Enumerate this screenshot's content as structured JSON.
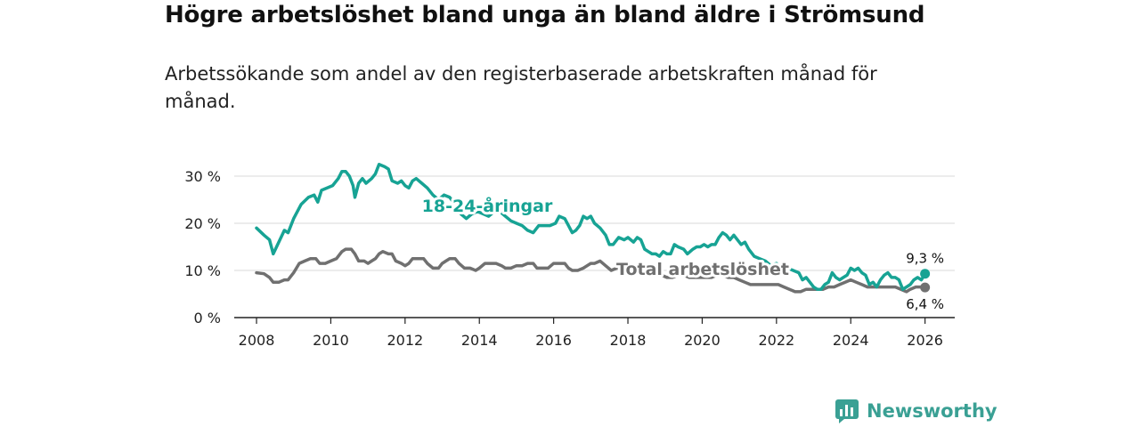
{
  "header": {
    "title": "Högre arbetslöshet bland unga än bland äldre i Strömsund",
    "subtitle": "Arbetssökande som andel av den registerbaserade arbetskraften månad för månad."
  },
  "brand": {
    "name": "Newsworthy",
    "icon": "newsworthy-logo-icon"
  },
  "colors": {
    "youth": "#17a394",
    "total": "#707070",
    "grid": "#d9d9d9",
    "axis": "#222222"
  },
  "chart_data": {
    "type": "line",
    "title": "Högre arbetslöshet bland unga än bland äldre i Strömsund",
    "subtitle": "Arbetssökande som andel av den registerbaserade arbetskraften månad för månad.",
    "xlabel": "",
    "ylabel": "",
    "xlim": [
      2007.4,
      2026.8
    ],
    "ylim": [
      0,
      30
    ],
    "x_ticks": [
      2008,
      2010,
      2012,
      2014,
      2016,
      2018,
      2020,
      2022,
      2024,
      2026
    ],
    "y_ticks": [
      0,
      10,
      20,
      30
    ],
    "y_tick_labels": [
      "0 %",
      "10 %",
      "20 %",
      "30 %"
    ],
    "grid": true,
    "series": [
      {
        "name": "18-24-åringar",
        "label": "18-24-åringar",
        "end_label": "9,3 %",
        "points": [
          [
            2008.0,
            19.0
          ],
          [
            2008.2,
            17.5
          ],
          [
            2008.35,
            16.5
          ],
          [
            2008.45,
            13.5
          ],
          [
            2008.6,
            16.0
          ],
          [
            2008.75,
            18.5
          ],
          [
            2008.85,
            18.0
          ],
          [
            2009.0,
            21.0
          ],
          [
            2009.2,
            24.0
          ],
          [
            2009.4,
            25.5
          ],
          [
            2009.55,
            26.0
          ],
          [
            2009.65,
            24.5
          ],
          [
            2009.75,
            27.0
          ],
          [
            2009.9,
            27.5
          ],
          [
            2010.05,
            28.0
          ],
          [
            2010.2,
            29.5
          ],
          [
            2010.3,
            31.0
          ],
          [
            2010.4,
            31.0
          ],
          [
            2010.5,
            30.0
          ],
          [
            2010.6,
            28.0
          ],
          [
            2010.65,
            25.5
          ],
          [
            2010.75,
            28.5
          ],
          [
            2010.85,
            29.5
          ],
          [
            2010.95,
            28.5
          ],
          [
            2011.1,
            29.5
          ],
          [
            2011.2,
            30.5
          ],
          [
            2011.3,
            32.5
          ],
          [
            2011.45,
            32.0
          ],
          [
            2011.55,
            31.5
          ],
          [
            2011.65,
            29.0
          ],
          [
            2011.8,
            28.5
          ],
          [
            2011.9,
            29.0
          ],
          [
            2012.0,
            28.0
          ],
          [
            2012.1,
            27.5
          ],
          [
            2012.2,
            29.0
          ],
          [
            2012.3,
            29.5
          ],
          [
            2012.45,
            28.5
          ],
          [
            2012.6,
            27.5
          ],
          [
            2012.75,
            26.0
          ],
          [
            2012.9,
            25.0
          ],
          [
            2013.05,
            26.0
          ],
          [
            2013.2,
            25.5
          ],
          [
            2013.35,
            24.0
          ],
          [
            2013.5,
            22.0
          ],
          [
            2013.65,
            21.0
          ],
          [
            2013.8,
            22.0
          ],
          [
            2013.95,
            22.5
          ],
          [
            2014.1,
            22.0
          ],
          [
            2014.25,
            21.5
          ],
          [
            2014.4,
            22.5
          ],
          [
            2014.55,
            22.5
          ],
          [
            2014.7,
            21.5
          ],
          [
            2014.85,
            20.5
          ],
          [
            2015.0,
            20.0
          ],
          [
            2015.15,
            19.5
          ],
          [
            2015.3,
            18.5
          ],
          [
            2015.45,
            18.0
          ],
          [
            2015.6,
            19.5
          ],
          [
            2015.75,
            19.5
          ],
          [
            2015.9,
            19.5
          ],
          [
            2016.05,
            20.0
          ],
          [
            2016.15,
            21.5
          ],
          [
            2016.3,
            21.0
          ],
          [
            2016.4,
            19.5
          ],
          [
            2016.5,
            18.0
          ],
          [
            2016.6,
            18.5
          ],
          [
            2016.7,
            19.5
          ],
          [
            2016.8,
            21.5
          ],
          [
            2016.9,
            21.0
          ],
          [
            2017.0,
            21.5
          ],
          [
            2017.1,
            20.0
          ],
          [
            2017.25,
            19.0
          ],
          [
            2017.4,
            17.5
          ],
          [
            2017.5,
            15.5
          ],
          [
            2017.6,
            15.5
          ],
          [
            2017.75,
            17.0
          ],
          [
            2017.9,
            16.5
          ],
          [
            2018.0,
            17.0
          ],
          [
            2018.15,
            16.0
          ],
          [
            2018.25,
            17.0
          ],
          [
            2018.35,
            16.5
          ],
          [
            2018.45,
            14.5
          ],
          [
            2018.55,
            14.0
          ],
          [
            2018.65,
            13.5
          ],
          [
            2018.75,
            13.5
          ],
          [
            2018.85,
            13.0
          ],
          [
            2018.95,
            14.0
          ],
          [
            2019.05,
            13.5
          ],
          [
            2019.15,
            13.5
          ],
          [
            2019.25,
            15.5
          ],
          [
            2019.35,
            15.0
          ],
          [
            2019.5,
            14.5
          ],
          [
            2019.6,
            13.5
          ],
          [
            2019.75,
            14.5
          ],
          [
            2019.85,
            15.0
          ],
          [
            2019.95,
            15.0
          ],
          [
            2020.05,
            15.5
          ],
          [
            2020.15,
            15.0
          ],
          [
            2020.25,
            15.5
          ],
          [
            2020.35,
            15.5
          ],
          [
            2020.45,
            17.0
          ],
          [
            2020.55,
            18.0
          ],
          [
            2020.65,
            17.5
          ],
          [
            2020.75,
            16.5
          ],
          [
            2020.85,
            17.5
          ],
          [
            2020.95,
            16.5
          ],
          [
            2021.05,
            15.5
          ],
          [
            2021.15,
            16.0
          ],
          [
            2021.25,
            14.5
          ],
          [
            2021.4,
            13.0
          ],
          [
            2021.55,
            12.5
          ],
          [
            2021.7,
            12.0
          ],
          [
            2021.85,
            11.0
          ],
          [
            2022.0,
            11.5
          ],
          [
            2022.1,
            10.5
          ],
          [
            2022.2,
            11.5
          ],
          [
            2022.3,
            10.5
          ],
          [
            2022.45,
            10.0
          ],
          [
            2022.6,
            9.5
          ],
          [
            2022.7,
            8.0
          ],
          [
            2022.8,
            8.5
          ],
          [
            2022.9,
            7.5
          ],
          [
            2023.0,
            6.5
          ],
          [
            2023.1,
            6.0
          ],
          [
            2023.2,
            6.0
          ],
          [
            2023.3,
            7.0
          ],
          [
            2023.4,
            7.5
          ],
          [
            2023.5,
            9.5
          ],
          [
            2023.6,
            8.5
          ],
          [
            2023.7,
            8.0
          ],
          [
            2023.8,
            8.5
          ],
          [
            2023.9,
            9.0
          ],
          [
            2024.0,
            10.5
          ],
          [
            2024.1,
            10.0
          ],
          [
            2024.2,
            10.5
          ],
          [
            2024.3,
            9.5
          ],
          [
            2024.4,
            9.0
          ],
          [
            2024.5,
            7.0
          ],
          [
            2024.6,
            7.5
          ],
          [
            2024.7,
            6.5
          ],
          [
            2024.8,
            8.0
          ],
          [
            2024.9,
            9.0
          ],
          [
            2025.0,
            9.5
          ],
          [
            2025.1,
            8.5
          ],
          [
            2025.2,
            8.5
          ],
          [
            2025.3,
            8.0
          ],
          [
            2025.4,
            6.0
          ],
          [
            2025.5,
            6.5
          ],
          [
            2025.6,
            7.0
          ],
          [
            2025.7,
            8.0
          ],
          [
            2025.8,
            8.5
          ],
          [
            2025.9,
            8.0
          ],
          [
            2026.0,
            9.3
          ]
        ]
      },
      {
        "name": "Total arbetslöshet",
        "label": "Total arbetslöshet",
        "end_label": "6,4 %",
        "points": [
          [
            2008.0,
            9.5
          ],
          [
            2008.2,
            9.3
          ],
          [
            2008.35,
            8.5
          ],
          [
            2008.45,
            7.5
          ],
          [
            2008.6,
            7.5
          ],
          [
            2008.75,
            8.0
          ],
          [
            2008.85,
            8.0
          ],
          [
            2009.0,
            9.5
          ],
          [
            2009.15,
            11.5
          ],
          [
            2009.3,
            12.0
          ],
          [
            2009.45,
            12.5
          ],
          [
            2009.6,
            12.5
          ],
          [
            2009.7,
            11.5
          ],
          [
            2009.85,
            11.5
          ],
          [
            2010.0,
            12.0
          ],
          [
            2010.15,
            12.5
          ],
          [
            2010.3,
            14.0
          ],
          [
            2010.4,
            14.5
          ],
          [
            2010.55,
            14.5
          ],
          [
            2010.65,
            13.5
          ],
          [
            2010.75,
            12.0
          ],
          [
            2010.9,
            12.0
          ],
          [
            2011.0,
            11.5
          ],
          [
            2011.1,
            12.0
          ],
          [
            2011.2,
            12.5
          ],
          [
            2011.3,
            13.5
          ],
          [
            2011.4,
            14.0
          ],
          [
            2011.55,
            13.5
          ],
          [
            2011.65,
            13.5
          ],
          [
            2011.75,
            12.0
          ],
          [
            2011.9,
            11.5
          ],
          [
            2012.0,
            11.0
          ],
          [
            2012.1,
            11.5
          ],
          [
            2012.2,
            12.5
          ],
          [
            2012.35,
            12.5
          ],
          [
            2012.5,
            12.5
          ],
          [
            2012.6,
            11.5
          ],
          [
            2012.75,
            10.5
          ],
          [
            2012.9,
            10.5
          ],
          [
            2013.0,
            11.5
          ],
          [
            2013.1,
            12.0
          ],
          [
            2013.2,
            12.5
          ],
          [
            2013.35,
            12.5
          ],
          [
            2013.45,
            11.5
          ],
          [
            2013.6,
            10.5
          ],
          [
            2013.75,
            10.5
          ],
          [
            2013.9,
            10.0
          ],
          [
            2014.0,
            10.5
          ],
          [
            2014.15,
            11.5
          ],
          [
            2014.3,
            11.5
          ],
          [
            2014.45,
            11.5
          ],
          [
            2014.6,
            11.0
          ],
          [
            2014.7,
            10.5
          ],
          [
            2014.85,
            10.5
          ],
          [
            2015.0,
            11.0
          ],
          [
            2015.15,
            11.0
          ],
          [
            2015.3,
            11.5
          ],
          [
            2015.45,
            11.5
          ],
          [
            2015.55,
            10.5
          ],
          [
            2015.7,
            10.5
          ],
          [
            2015.85,
            10.5
          ],
          [
            2016.0,
            11.5
          ],
          [
            2016.15,
            11.5
          ],
          [
            2016.3,
            11.5
          ],
          [
            2016.4,
            10.5
          ],
          [
            2016.5,
            10.0
          ],
          [
            2016.65,
            10.0
          ],
          [
            2016.8,
            10.5
          ],
          [
            2016.9,
            11.0
          ],
          [
            2017.0,
            11.5
          ],
          [
            2017.1,
            11.5
          ],
          [
            2017.25,
            12.0
          ],
          [
            2017.4,
            11.0
          ],
          [
            2017.55,
            10.0
          ],
          [
            2017.7,
            10.5
          ],
          [
            2017.85,
            10.5
          ],
          [
            2018.0,
            10.0
          ],
          [
            2018.15,
            10.0
          ],
          [
            2018.3,
            10.0
          ],
          [
            2018.45,
            9.5
          ],
          [
            2018.6,
            9.0
          ],
          [
            2018.75,
            9.0
          ],
          [
            2018.9,
            9.0
          ],
          [
            2019.05,
            8.5
          ],
          [
            2019.2,
            8.5
          ],
          [
            2019.35,
            9.0
          ],
          [
            2019.5,
            9.0
          ],
          [
            2019.65,
            8.5
          ],
          [
            2019.8,
            8.5
          ],
          [
            2019.95,
            8.5
          ],
          [
            2020.1,
            8.5
          ],
          [
            2020.25,
            8.5
          ],
          [
            2020.4,
            9.0
          ],
          [
            2020.55,
            9.0
          ],
          [
            2020.7,
            8.5
          ],
          [
            2020.85,
            8.5
          ],
          [
            2021.0,
            8.0
          ],
          [
            2021.15,
            7.5
          ],
          [
            2021.3,
            7.0
          ],
          [
            2021.45,
            7.0
          ],
          [
            2021.6,
            7.0
          ],
          [
            2021.75,
            7.0
          ],
          [
            2021.9,
            7.0
          ],
          [
            2022.05,
            7.0
          ],
          [
            2022.2,
            6.5
          ],
          [
            2022.35,
            6.0
          ],
          [
            2022.5,
            5.5
          ],
          [
            2022.65,
            5.5
          ],
          [
            2022.8,
            6.0
          ],
          [
            2022.95,
            6.0
          ],
          [
            2023.1,
            6.0
          ],
          [
            2023.25,
            6.0
          ],
          [
            2023.4,
            6.5
          ],
          [
            2023.55,
            6.5
          ],
          [
            2023.7,
            7.0
          ],
          [
            2023.85,
            7.5
          ],
          [
            2024.0,
            8.0
          ],
          [
            2024.15,
            7.5
          ],
          [
            2024.3,
            7.0
          ],
          [
            2024.45,
            6.5
          ],
          [
            2024.6,
            6.5
          ],
          [
            2024.75,
            6.5
          ],
          [
            2024.9,
            6.5
          ],
          [
            2025.05,
            6.5
          ],
          [
            2025.2,
            6.5
          ],
          [
            2025.35,
            6.0
          ],
          [
            2025.5,
            5.5
          ],
          [
            2025.6,
            6.0
          ],
          [
            2025.75,
            6.5
          ],
          [
            2025.9,
            6.5
          ],
          [
            2026.0,
            6.4
          ]
        ]
      }
    ]
  }
}
